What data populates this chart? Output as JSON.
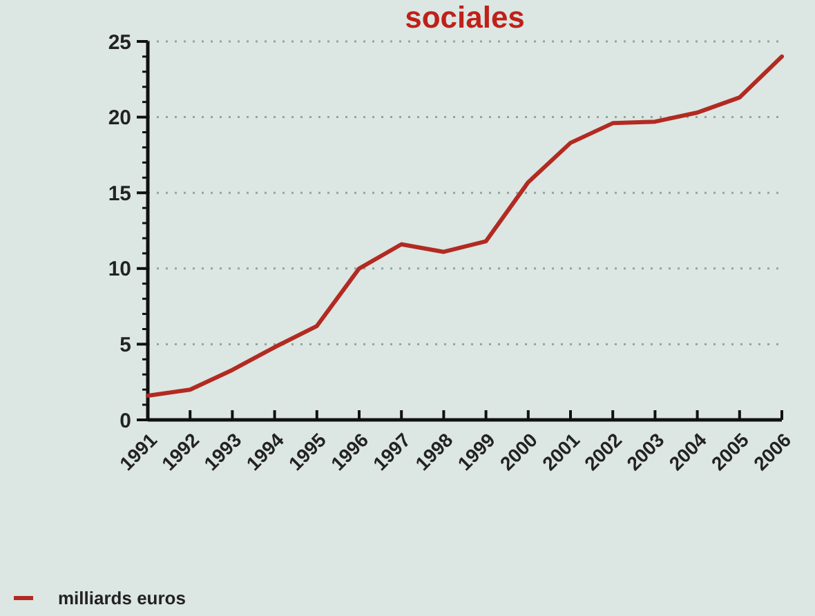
{
  "chart_data": {
    "type": "line",
    "title": "sociales",
    "categories": [
      "1991",
      "1992",
      "1993",
      "1994",
      "1995",
      "1996",
      "1997",
      "1998",
      "1999",
      "2000",
      "2001",
      "2002",
      "2003",
      "2004",
      "2005",
      "2006"
    ],
    "series": [
      {
        "name": "milliards euros",
        "color": "#b22a22",
        "values": [
          1.6,
          2.0,
          3.3,
          4.8,
          6.2,
          10.0,
          11.6,
          11.1,
          11.8,
          15.7,
          18.3,
          19.6,
          19.7,
          20.3,
          21.3,
          24.0
        ]
      }
    ],
    "ylim": [
      0,
      25
    ],
    "yticks": [
      0,
      5,
      10,
      15,
      20,
      25
    ],
    "grid": "y",
    "legend": "bottom left"
  }
}
